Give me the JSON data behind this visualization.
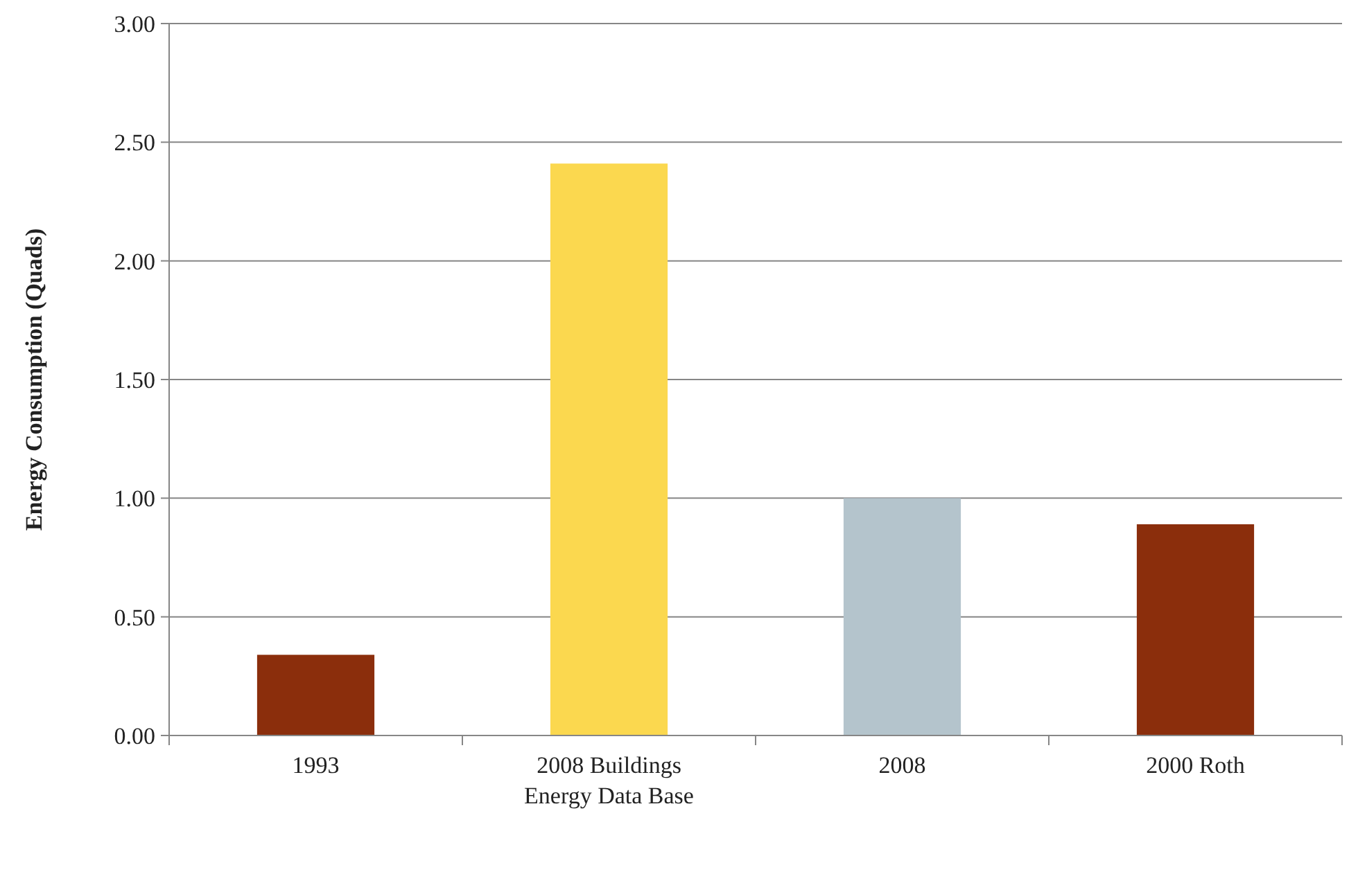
{
  "chart_data": {
    "type": "bar",
    "ylabel": "Energy Consumption (Quads)",
    "categories": [
      "1993",
      "2008 Buildings Energy Data Base",
      "2008",
      "2000 Roth"
    ],
    "values": [
      0.34,
      2.41,
      1.0,
      0.89
    ],
    "colors": [
      "#8b2e0c",
      "#fbd84f",
      "#b4c4cc",
      "#8b2e0c"
    ],
    "ylim": [
      0,
      3
    ],
    "yticks": [
      {
        "value": 0,
        "label": "0.00"
      },
      {
        "value": 0.5,
        "label": "0.50"
      },
      {
        "value": 1,
        "label": "1.00"
      },
      {
        "value": 1.5,
        "label": "1.50"
      },
      {
        "value": 2,
        "label": "2.00"
      },
      {
        "value": 2.5,
        "label": "2.50"
      },
      {
        "value": 3,
        "label": "3.00"
      }
    ],
    "grid": "y"
  }
}
